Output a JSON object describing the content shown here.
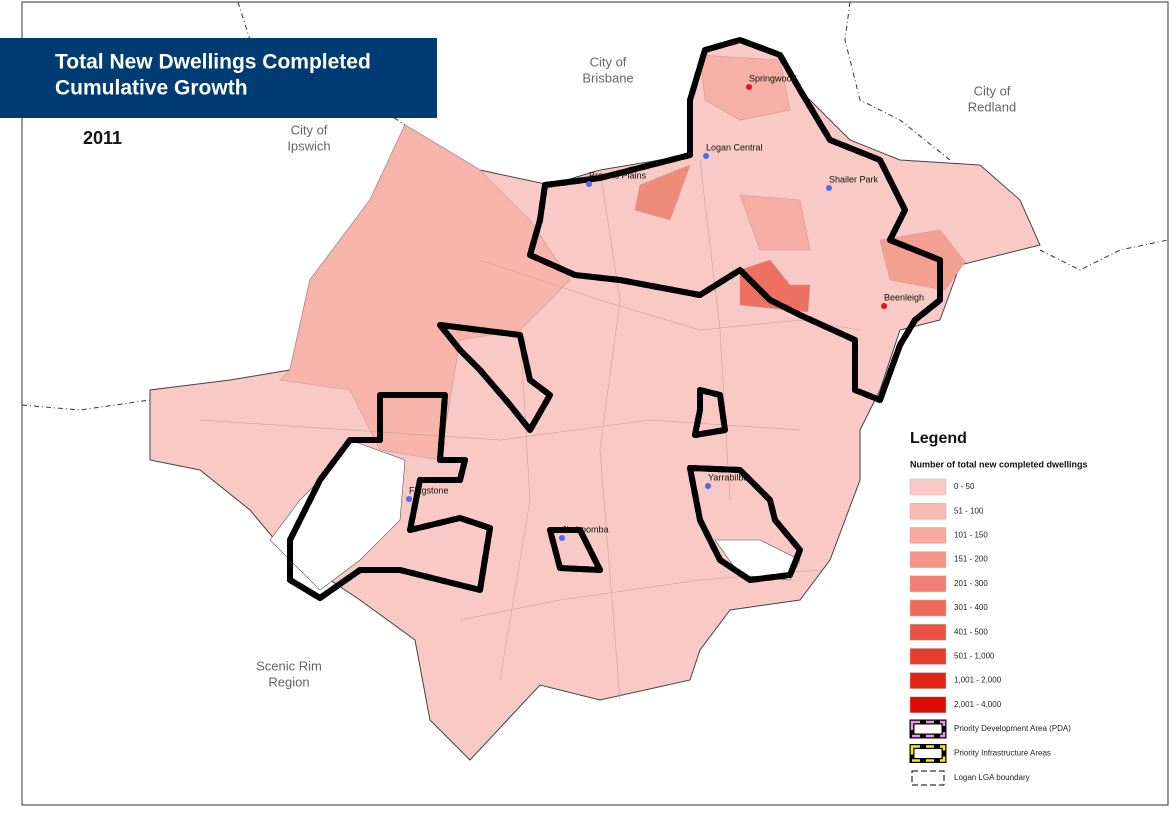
{
  "header": {
    "title_lines": [
      "Total New Dwellings Completed",
      "Cumulative Growth"
    ],
    "year": "2011"
  },
  "regions": [
    {
      "label_lines": [
        "City of",
        "Brisbane"
      ]
    },
    {
      "label_lines": [
        "City of",
        "Redland"
      ]
    },
    {
      "label_lines": [
        "City of",
        "Ipswich"
      ]
    },
    {
      "label_lines": [
        "Scenic Rim",
        "Region"
      ]
    }
  ],
  "places": [
    {
      "label": "Springwood",
      "marker_color": "#e0141e"
    },
    {
      "label": "Logan Central",
      "marker_color": "#4a6cf0"
    },
    {
      "label": "Browns Plains",
      "marker_color": "#4a6cf0"
    },
    {
      "label": "Shailer Park",
      "marker_color": "#4a6cf0"
    },
    {
      "label": "Beenleigh",
      "marker_color": "#e0141e"
    },
    {
      "label": "Flagstone",
      "marker_color": "#4a6cf0"
    },
    {
      "label": "Yarrabilba",
      "marker_color": "#4a6cf0"
    },
    {
      "label": "Jimboomba",
      "marker_color": "#4a6cf0"
    }
  ],
  "legend": {
    "title": "Legend",
    "subtitle": "Number of total new completed dwellings",
    "classes": [
      {
        "label": "0 - 50",
        "color": "#f9c9c5"
      },
      {
        "label": "51 - 100",
        "color": "#f8b9b2"
      },
      {
        "label": "101 - 150",
        "color": "#f6a99f"
      },
      {
        "label": "151 - 200",
        "color": "#f4958a"
      },
      {
        "label": "201 - 300",
        "color": "#f17f72"
      },
      {
        "label": "301 - 400",
        "color": "#ee6a5c"
      },
      {
        "label": "401 - 500",
        "color": "#eb5445"
      },
      {
        "label": "501 - 1,000",
        "color": "#e83c2f"
      },
      {
        "label": "1,001 - 2,000",
        "color": "#e32619"
      },
      {
        "label": "2,001 - 4,000",
        "color": "#de0b06"
      }
    ],
    "boundaries": [
      {
        "label": "Priority Development Area (PDA)"
      },
      {
        "label": "Priority Infrastructure Areas"
      },
      {
        "label": "Logan LGA boundary"
      }
    ]
  }
}
